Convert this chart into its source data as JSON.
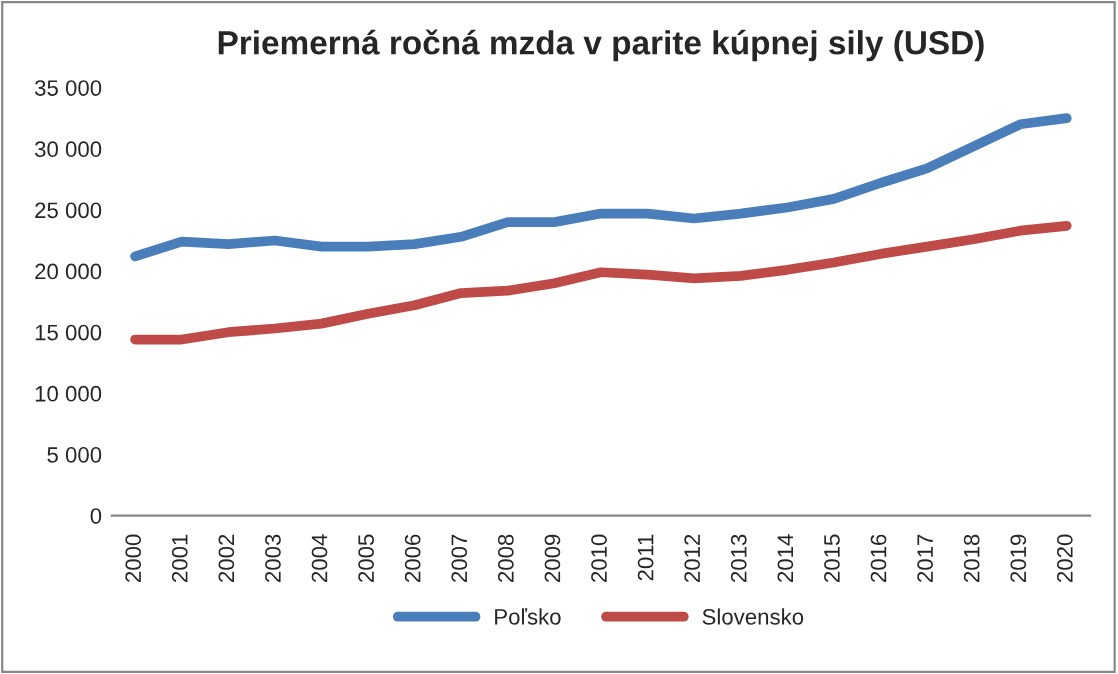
{
  "chart_data": {
    "type": "line",
    "title": "Priemerná ročná mzda v parite kúpnej sily (USD)",
    "categories": [
      "2000",
      "2001",
      "2002",
      "2003",
      "2004",
      "2005",
      "2006",
      "2007",
      "2008",
      "2009",
      "2010",
      "2011",
      "2012",
      "2013",
      "2014",
      "2015",
      "2016",
      "2017",
      "2018",
      "2019",
      "2020"
    ],
    "series": [
      {
        "name": "Poľsko",
        "color": "#4a7ebb",
        "values": [
          21200,
          22400,
          22200,
          22500,
          22000,
          22000,
          22200,
          22800,
          24000,
          24000,
          24700,
          24700,
          24300,
          24700,
          25200,
          25900,
          27200,
          28400,
          30200,
          32000,
          32500
        ]
      },
      {
        "name": "Slovensko",
        "color": "#be4b48",
        "values": [
          14400,
          14400,
          15000,
          15300,
          15700,
          16500,
          17200,
          18200,
          18400,
          19000,
          19900,
          19700,
          19400,
          19600,
          20100,
          20700,
          21400,
          22000,
          22600,
          23300,
          23700
        ]
      }
    ],
    "ylim": [
      0,
      35000
    ],
    "yticks": [
      {
        "value": 0,
        "label": "0"
      },
      {
        "value": 5000,
        "label": "5 000"
      },
      {
        "value": 10000,
        "label": "10 000"
      },
      {
        "value": 15000,
        "label": "15 000"
      },
      {
        "value": 20000,
        "label": "20 000"
      },
      {
        "value": 25000,
        "label": "25 000"
      },
      {
        "value": 30000,
        "label": "30 000"
      },
      {
        "value": 35000,
        "label": "35 000"
      }
    ],
    "grid": false,
    "legend": "bottom",
    "line_style": "solid",
    "marker": "none"
  }
}
